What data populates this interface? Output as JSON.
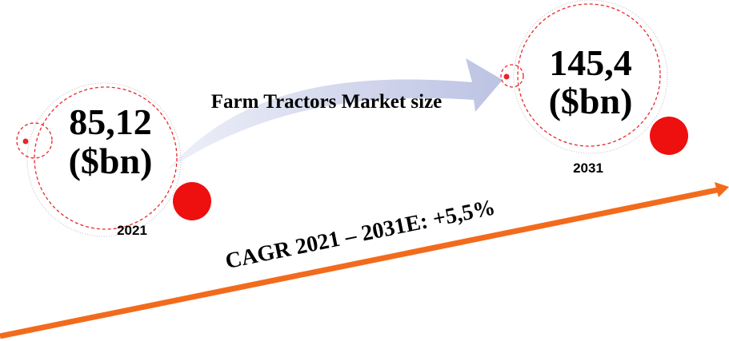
{
  "title": "Farm Tractors Market size",
  "start": {
    "value": "85,12",
    "unit": "($bn)",
    "year": "2021"
  },
  "end": {
    "value": "145,4",
    "unit": "($bn)",
    "year": "2031"
  },
  "cagr": "CAGR 2021 – 2031E: +5,5%"
}
